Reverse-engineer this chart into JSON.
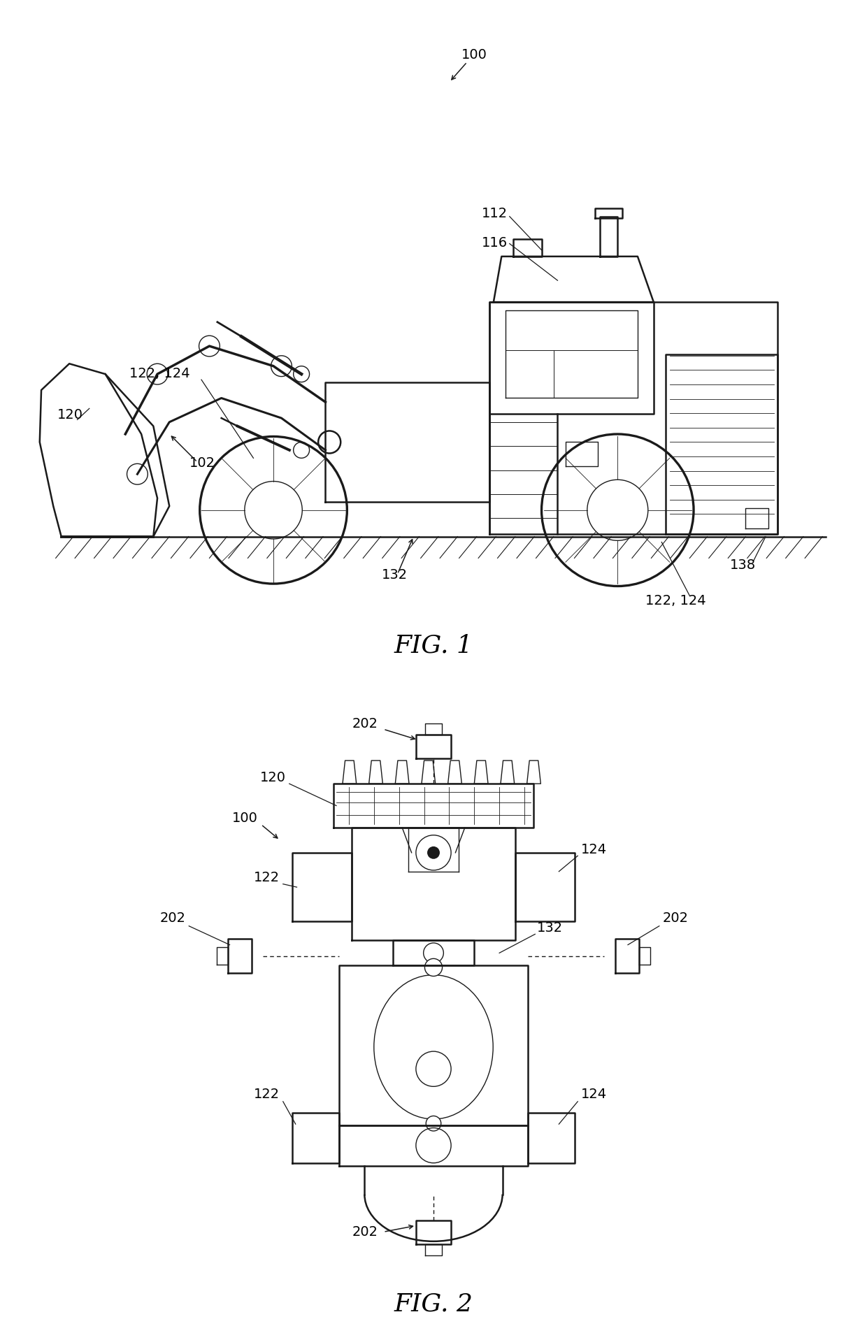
{
  "fig1_title": "FIG. 1",
  "fig2_title": "FIG. 2",
  "background_color": "#ffffff",
  "line_color": "#1a1a1a",
  "lw_main": 1.8,
  "lw_thin": 1.0,
  "lw_thick": 2.5,
  "fontsize_label": 14,
  "fontsize_fig": 26
}
